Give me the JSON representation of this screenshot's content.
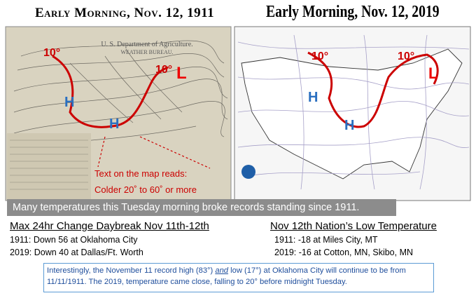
{
  "maps": {
    "left": {
      "title": "Early Morning, Nov. 12, 1911",
      "header": "U. S. Department of Agriculture.",
      "subheader": "WEATHER BUREAU.",
      "labels": {
        "cold_west": "10°",
        "cold_east": "10°",
        "low": "L",
        "high_1": "H",
        "high_2": "H"
      },
      "annotation": {
        "line1": "Text on the map reads:",
        "line2": "Colder 20˚ to 60˚ or more"
      }
    },
    "right": {
      "title": "Early Morning, Nov. 12, 2019",
      "labels": {
        "cold_west": "10°",
        "cold_east": "10°",
        "low": "L",
        "high_1": "H",
        "high_2": "H"
      }
    }
  },
  "banner": "Many temperatures this Tuesday morning broke records standing since 1911.",
  "sections": [
    {
      "heading": "Max 24hr Change Daybreak Nov 11th-12th",
      "lines": [
        "1911: Down 56 at Oklahoma City",
        "2019: Down 40 at Dallas/Ft. Worth"
      ]
    },
    {
      "heading": "Nov 12th Nation’s Low Temperature",
      "lines": [
        "1911: -18 at Miles City, MT",
        "2019: -16 at Cotton, MN, Skibo, MN"
      ]
    }
  ],
  "note": {
    "before": "Interestingly, the November 11 record high (83°)",
    "emphasis": "and",
    "middle": "low (17°) at Oklahoma City will continue to be",
    "after": "from 11/11/1911.  The 2019, temperature came close, falling to 20° before midnight Tuesday."
  }
}
